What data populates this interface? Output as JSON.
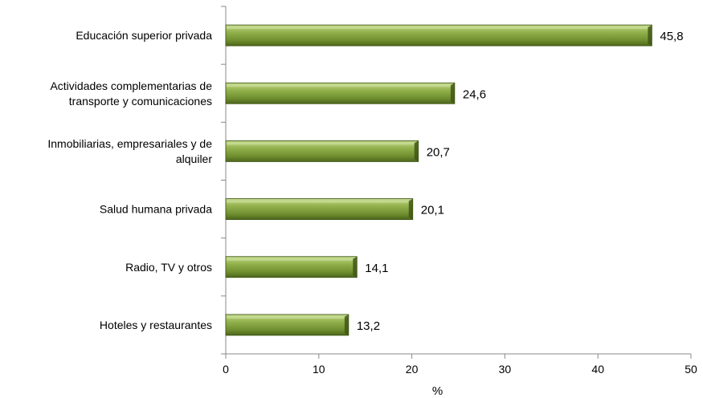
{
  "chart_data": {
    "type": "bar",
    "orientation": "horizontal",
    "categories": [
      [
        "Educación superior privada"
      ],
      [
        "Actividades complementarias de",
        "transporte y comunicaciones"
      ],
      [
        "Inmobiliarias, empresariales y de",
        "alquiler"
      ],
      [
        "Salud humana privada"
      ],
      [
        "Radio, TV y otros"
      ],
      [
        "Hoteles y restaurantes"
      ]
    ],
    "values": [
      45.8,
      24.6,
      20.7,
      20.1,
      14.1,
      13.2
    ],
    "value_labels": [
      "45,8",
      "24,6",
      "20,7",
      "20,1",
      "14,1",
      "13,2"
    ],
    "title": "",
    "xlabel": "%",
    "ylabel": "",
    "xlim": [
      0,
      50
    ],
    "x_ticks": [
      0,
      10,
      20,
      30,
      40,
      50
    ],
    "grid": false,
    "colors": {
      "bar_light": "#a6c265",
      "bar_mid": "#7b9a3a",
      "bar_dark": "#4f6a1f",
      "bar_edge": "#3a5010",
      "axis": "#888888"
    }
  }
}
